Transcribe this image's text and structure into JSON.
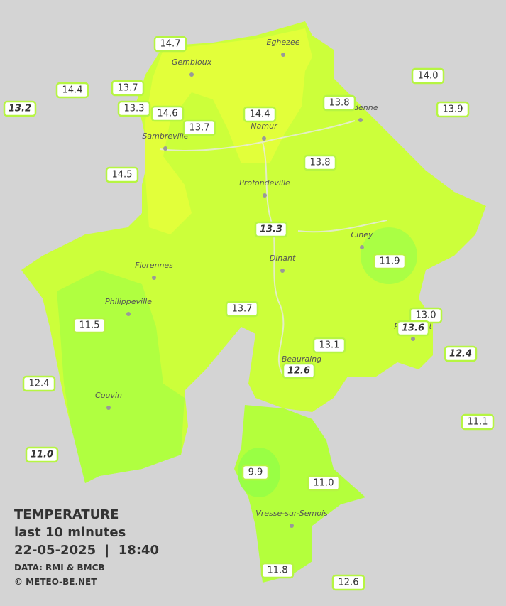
{
  "towns": [
    "Eghezee",
    "Gembloux",
    "Andenne",
    "Namur",
    "Sambreville",
    "Profondeville",
    "Ciney",
    "Florennes",
    "Dinant",
    "Philippeville",
    "Rochefort",
    "Beauraing",
    "Couvin",
    "Vresse-sur-Semois"
  ],
  "stations": [
    {
      "value": "14.7",
      "italic": false
    },
    {
      "value": "14.0",
      "italic": false
    },
    {
      "value": "14.4",
      "italic": false
    },
    {
      "value": "13.7",
      "italic": false
    },
    {
      "value": "13.8",
      "italic": false
    },
    {
      "value": "13.2",
      "italic": true
    },
    {
      "value": "13.3",
      "italic": false
    },
    {
      "value": "14.6",
      "italic": false
    },
    {
      "value": "14.4",
      "italic": false
    },
    {
      "value": "13.9",
      "italic": false
    },
    {
      "value": "13.7",
      "italic": false
    },
    {
      "value": "13.8",
      "italic": false
    },
    {
      "value": "14.5",
      "italic": false
    },
    {
      "value": "13.3",
      "italic": true
    },
    {
      "value": "11.9",
      "italic": false
    },
    {
      "value": "13.7",
      "italic": false
    },
    {
      "value": "13.0",
      "italic": false
    },
    {
      "value": "11.5",
      "italic": false
    },
    {
      "value": "13.6",
      "italic": true
    },
    {
      "value": "12.4",
      "italic": true
    },
    {
      "value": "13.1",
      "italic": false
    },
    {
      "value": "12.6",
      "italic": true
    },
    {
      "value": "12.4",
      "italic": false
    },
    {
      "value": "11.1",
      "italic": false
    },
    {
      "value": "11.0",
      "italic": true
    },
    {
      "value": "9.9",
      "italic": false
    },
    {
      "value": "11.0",
      "italic": false
    },
    {
      "value": "11.8",
      "italic": false
    },
    {
      "value": "12.6",
      "italic": false
    }
  ],
  "legend": {
    "title": "TEMPERATURE",
    "period": "last 10 minutes",
    "date": "22-05-2025  |  18:40",
    "source": "DATA: RMI & BMCB",
    "copyright": "© METEO-BE.NET"
  }
}
